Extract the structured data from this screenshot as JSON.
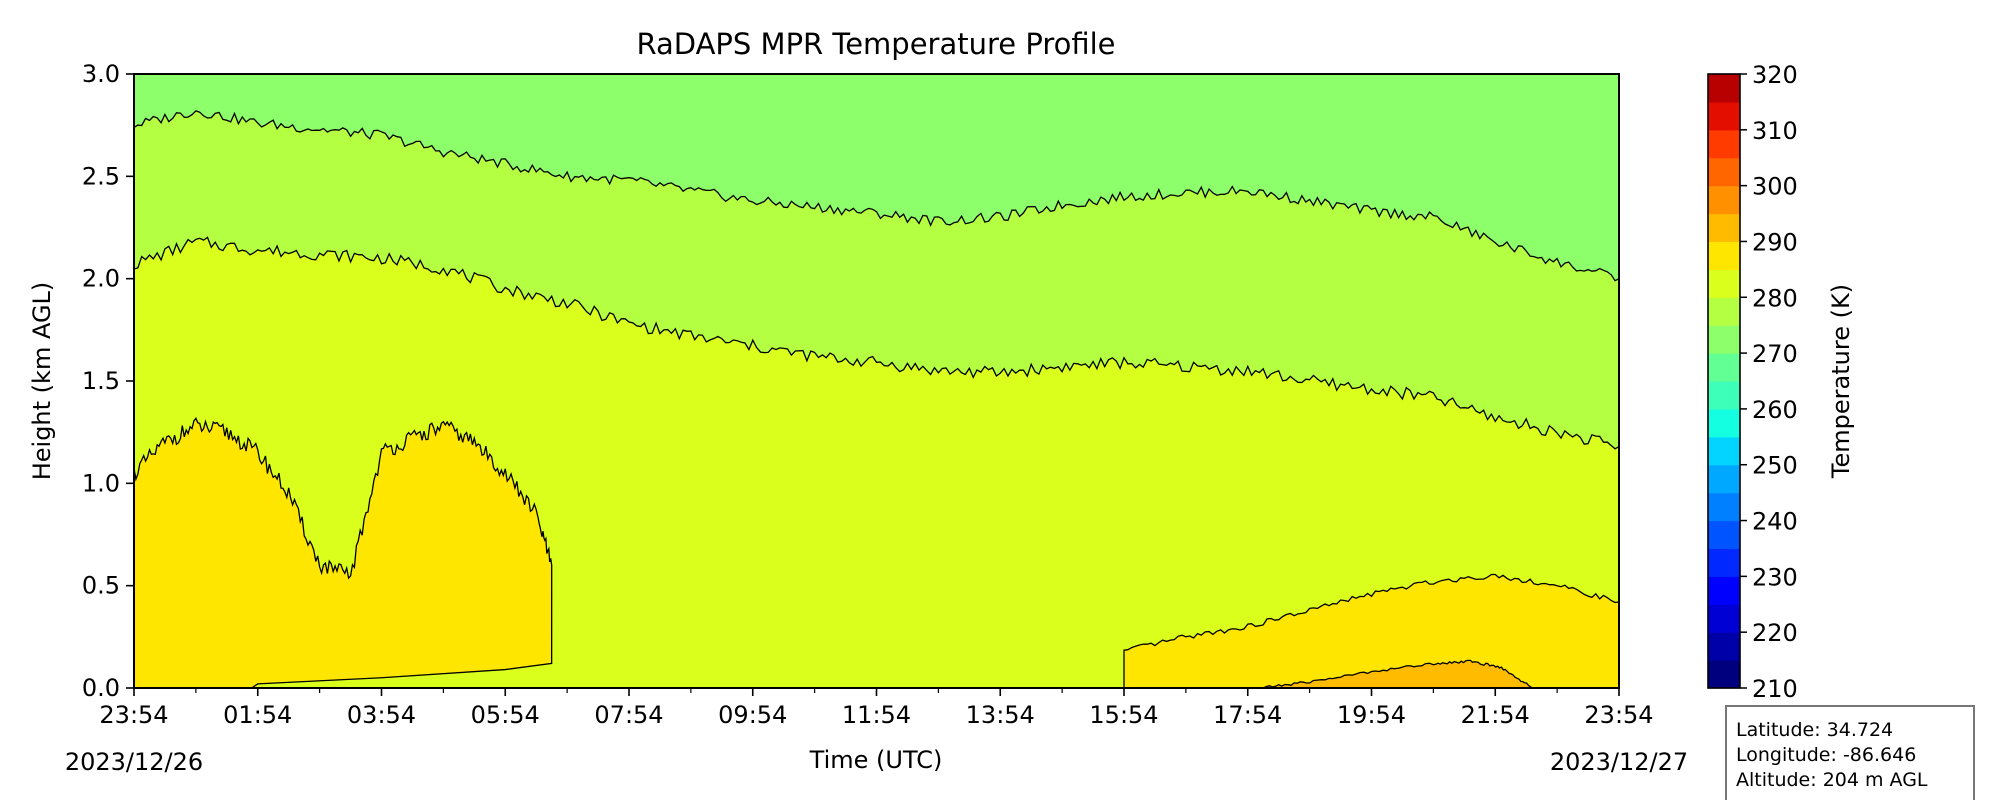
{
  "chart_data": {
    "type": "contourf",
    "title": "RaDAPS MPR Temperature Profile",
    "xlabel": "Time (UTC)",
    "ylabel": "Height (km AGL)",
    "x_ticks": [
      "23:54",
      "01:54",
      "03:54",
      "05:54",
      "07:54",
      "09:54",
      "11:54",
      "13:54",
      "15:54",
      "17:54",
      "19:54",
      "21:54",
      "23:54"
    ],
    "x_hours": [
      0,
      2,
      4,
      6,
      8,
      10,
      12,
      14,
      16,
      18,
      20,
      22,
      24
    ],
    "xlim_hours": [
      0,
      24
    ],
    "date_start": "2023/12/26",
    "date_end": "2023/12/27",
    "ylim": [
      0,
      3.0
    ],
    "y_ticks": [
      "0.0",
      "0.5",
      "1.0",
      "1.5",
      "2.0",
      "2.5",
      "3.0"
    ],
    "y_values": [
      0,
      0.5,
      1.0,
      1.5,
      2.0,
      2.5,
      3.0
    ],
    "colorbar": {
      "label": "Temperature (K)",
      "min": 210,
      "max": 320,
      "ticks": [
        "210",
        "220",
        "230",
        "240",
        "250",
        "260",
        "270",
        "280",
        "290",
        "300",
        "310",
        "320"
      ],
      "tick_values": [
        210,
        220,
        230,
        240,
        250,
        260,
        270,
        280,
        290,
        300,
        310,
        320
      ],
      "colors": [
        "#00007f",
        "#0000a8",
        "#0000d4",
        "#0000ff",
        "#0028ff",
        "#0054ff",
        "#0080ff",
        "#00a8ff",
        "#00d4ff",
        "#14ffe2",
        "#3dffba",
        "#62ff94",
        "#8cff6a",
        "#b4ff42",
        "#daff1c",
        "#ffe600",
        "#ffbb00",
        "#ff9000",
        "#ff6600",
        "#ff3b00",
        "#e30d00",
        "#b80000"
      ]
    },
    "contour_boundaries": [
      {
        "level_K": 265,
        "x_hours": [
          0,
          1,
          2,
          3,
          4,
          5,
          6,
          7,
          8,
          9,
          10,
          11,
          12,
          13,
          14,
          15,
          16,
          17,
          18,
          19,
          20,
          21,
          22,
          23,
          24
        ],
        "y_km": [
          2.75,
          2.82,
          2.76,
          2.73,
          2.7,
          2.62,
          2.56,
          2.5,
          2.48,
          2.43,
          2.38,
          2.35,
          2.32,
          2.28,
          2.3,
          2.36,
          2.4,
          2.42,
          2.43,
          2.38,
          2.33,
          2.3,
          2.18,
          2.08,
          2.0
        ]
      },
      {
        "level_K": 275,
        "x_hours": [
          0,
          1,
          2,
          3,
          4,
          5,
          6,
          7,
          8,
          9,
          10,
          11,
          12,
          13,
          14,
          15,
          16,
          17,
          18,
          19,
          20,
          21,
          22,
          23,
          24
        ],
        "y_km": [
          2.07,
          2.18,
          2.14,
          2.12,
          2.1,
          2.05,
          1.95,
          1.88,
          1.78,
          1.72,
          1.67,
          1.62,
          1.59,
          1.55,
          1.54,
          1.57,
          1.59,
          1.57,
          1.55,
          1.5,
          1.46,
          1.42,
          1.32,
          1.25,
          1.18
        ]
      },
      {
        "level_K": 285,
        "x_hours": [
          0,
          0.5,
          1,
          1.5,
          2,
          2.5,
          3,
          3.5,
          4,
          4.5,
          5,
          5.5,
          6,
          6.5,
          6.75
        ],
        "y_km": [
          1.05,
          1.2,
          1.28,
          1.25,
          1.15,
          0.95,
          0.6,
          0.55,
          1.15,
          1.22,
          1.28,
          1.2,
          1.05,
          0.85,
          0.6
        ]
      },
      {
        "level_K": 285,
        "x_hours": [
          16,
          17,
          18,
          19,
          20,
          21,
          22,
          23,
          24
        ],
        "y_km": [
          0.18,
          0.25,
          0.3,
          0.38,
          0.46,
          0.52,
          0.55,
          0.5,
          0.42
        ]
      },
      {
        "level_K": 290,
        "x_hours": [
          18.2,
          19,
          20,
          21,
          21.6,
          22.1,
          22.6
        ],
        "y_km": [
          0.0,
          0.03,
          0.08,
          0.12,
          0.13,
          0.1,
          0.0
        ]
      }
    ],
    "station_info": {
      "latitude": "Latitude: 34.724",
      "longitude": "Longitude: -86.646",
      "altitude": "Altitude: 204 m AGL"
    },
    "legend_position": "bottom-right"
  }
}
